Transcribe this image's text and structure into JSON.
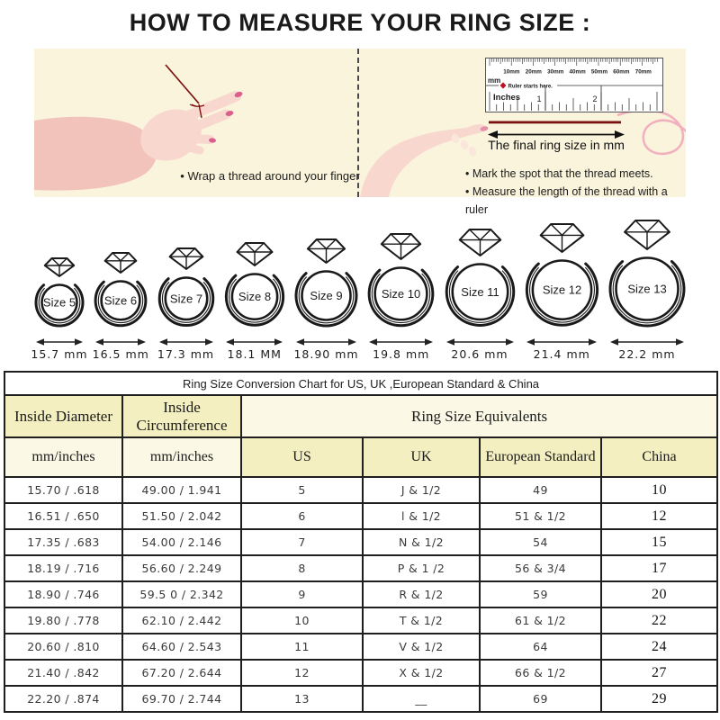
{
  "title": "HOW TO MEASURE YOUR RING SIZE :",
  "panels": {
    "left": {
      "caption": "• Wrap a thread around your finger"
    },
    "right": {
      "ruler": {
        "mm_labels": [
          "10mm",
          "20mm",
          "30mm",
          "40mm",
          "50mm",
          "60mm",
          "70mm"
        ],
        "mm_unit": "mm",
        "starts_here": "Ruler starts here.",
        "inches_label": "Inches",
        "inch_numbers": [
          "1",
          "2"
        ]
      },
      "arrow_label": "The final ring size in mm",
      "captions": [
        "• Mark the spot that the thread meets.",
        "• Measure the length of the thread with a ruler"
      ]
    }
  },
  "rings": [
    {
      "label": "Size 5",
      "mm": "15.7 mm"
    },
    {
      "label": "Size 6",
      "mm": "16.5 mm"
    },
    {
      "label": "Size 7",
      "mm": "17.3 mm"
    },
    {
      "label": "Size 8",
      "mm": "18.1 MM"
    },
    {
      "label": "Size 9",
      "mm": "18.90 mm"
    },
    {
      "label": "Size 10",
      "mm": "19.8 mm"
    },
    {
      "label": "Size 11",
      "mm": "20.6 mm"
    },
    {
      "label": "Size 12",
      "mm": "21.4 mm"
    },
    {
      "label": "Size 13",
      "mm": "22.2 mm"
    }
  ],
  "table": {
    "title": "Ring Size Conversion Chart for US, UK ,European Standard & China",
    "headers": {
      "inside_diameter": "Inside Diameter",
      "inside_circumference": "Inside Circumference",
      "equivalents": "Ring Size Equivalents",
      "mm_inches_1": "mm/inches",
      "mm_inches_2": "mm/inches",
      "us": "US",
      "uk": "UK",
      "eu": "European Standard",
      "china": "China"
    },
    "rows": [
      [
        "15.70 / .618",
        "49.00 / 1.941",
        "5",
        "J & 1/2",
        "49",
        "10"
      ],
      [
        "16.51 / .650",
        "51.50 / 2.042",
        "6",
        "l & 1/2",
        "51 & 1/2",
        "12"
      ],
      [
        "17.35 / .683",
        "54.00 / 2.146",
        "7",
        "N & 1/2",
        "54",
        "15"
      ],
      [
        "18.19 / .716",
        "56.60 / 2.249",
        "8",
        "P & 1 /2",
        "56 & 3/4",
        "17"
      ],
      [
        "18.90 / .746",
        "59.5 0 / 2.342",
        "9",
        "R & 1/2",
        "59",
        "20"
      ],
      [
        "19.80 / .778",
        "62.10 / 2.442",
        "10",
        "T & 1/2",
        "61 & 1/2",
        "22"
      ],
      [
        "20.60 / .810",
        "64.60 / 2.543",
        "11",
        "V & 1/2",
        "64",
        "24"
      ],
      [
        "21.40 / .842",
        "67.20 / 2.644",
        "12",
        "X & 1/2",
        "66 & 1/2",
        "27"
      ],
      [
        "22.20 / .874",
        "69.70 / 2.744",
        "13",
        "__",
        "69",
        "29"
      ]
    ]
  },
  "colors": {
    "panel_background": "#FAF4DC",
    "table_header_yellow": "#F4EFC0",
    "table_header_pale": "#FBF9E6",
    "thread_red": "#7A1010",
    "marker_red": "#C00F1E",
    "nail_pink": "#D9608C",
    "skin_light": "#F8D8CE",
    "skin_shade": "#F2C3BA",
    "curl_pink": "#F2AFC0",
    "line_black": "#1F1F1F"
  }
}
